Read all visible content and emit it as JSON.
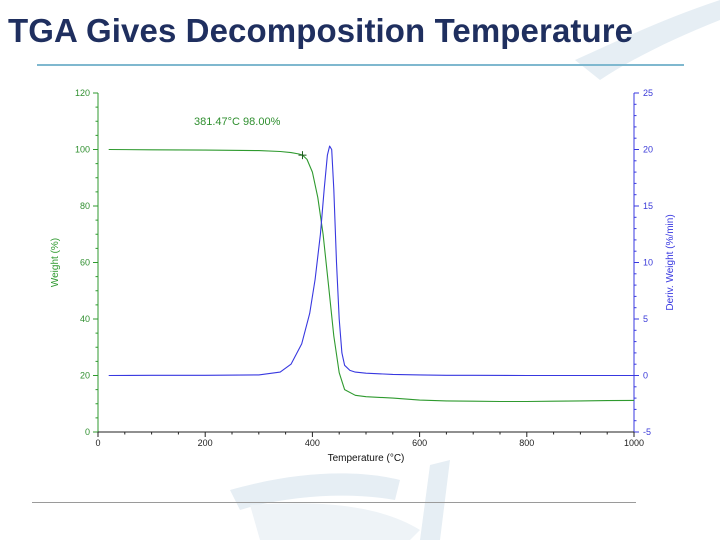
{
  "slide": {
    "title": "TGA Gives Decomposition Temperature"
  },
  "colors": {
    "weight_series": "#2f9a2f",
    "deriv_series": "#3838e0",
    "title": "#1f2f5f",
    "rule": "#7fb8cf",
    "watermark": "#e6eef4"
  },
  "chart_data": {
    "type": "line",
    "title": "",
    "xlabel": "Temperature (°C)",
    "ylabel": "Weight (%)",
    "y2label": "Deriv. Weight (%/min)",
    "xlim": [
      0,
      1000
    ],
    "ylim": [
      0,
      120
    ],
    "y2lim": [
      -5,
      25
    ],
    "x_ticks": [
      0,
      200,
      400,
      600,
      800,
      1000
    ],
    "x_tick_labels": [
      "0",
      "200",
      "400",
      "600",
      "800",
      "1000"
    ],
    "y_ticks": [
      0,
      20,
      40,
      60,
      80,
      100,
      120
    ],
    "y_tick_labels": [
      "0",
      "20",
      "40",
      "60",
      "80",
      "100",
      "120"
    ],
    "y2_ticks": [
      -5,
      0,
      5,
      10,
      15,
      20,
      25
    ],
    "y2_tick_labels": [
      "-5",
      "0",
      "5",
      "10",
      "15",
      "20",
      "25"
    ],
    "grid": false,
    "series": [
      {
        "axis": "left",
        "color": "#2f9a2f",
        "x": [
          20,
          100,
          200,
          300,
          340,
          360,
          375,
          381.47,
          390,
          400,
          410,
          420,
          430,
          440,
          450,
          460,
          480,
          500,
          550,
          600,
          650,
          700,
          750,
          800,
          850,
          900,
          950,
          1000
        ],
        "y": [
          100,
          99.9,
          99.8,
          99.6,
          99.3,
          98.9,
          98.4,
          98.0,
          96.5,
          92,
          83,
          70,
          52,
          34,
          21,
          15,
          13,
          12.5,
          12,
          11.3,
          11,
          10.9,
          10.8,
          10.8,
          10.9,
          11,
          11.1,
          11.2
        ]
      },
      {
        "axis": "right",
        "color": "#3838e0",
        "x": [
          20,
          100,
          200,
          300,
          340,
          360,
          380,
          395,
          405,
          415,
          422,
          428,
          432,
          436,
          440,
          445,
          450,
          455,
          460,
          470,
          480,
          500,
          550,
          600,
          650,
          700,
          800,
          900,
          950,
          1000
        ],
        "y": [
          0,
          0.02,
          0.02,
          0.05,
          0.3,
          1.0,
          2.8,
          5.5,
          8.5,
          12.5,
          16.5,
          19.5,
          20.3,
          20.0,
          16.5,
          10.0,
          5.0,
          2.0,
          0.9,
          0.45,
          0.3,
          0.2,
          0.1,
          0.05,
          0.02,
          0.02,
          0.0,
          0.0,
          0.0,
          0.0
        ]
      }
    ],
    "annotations": [
      {
        "x": 381.47,
        "y": 98.0,
        "text": "381.47°C 98.00%",
        "marker": "+"
      }
    ]
  }
}
